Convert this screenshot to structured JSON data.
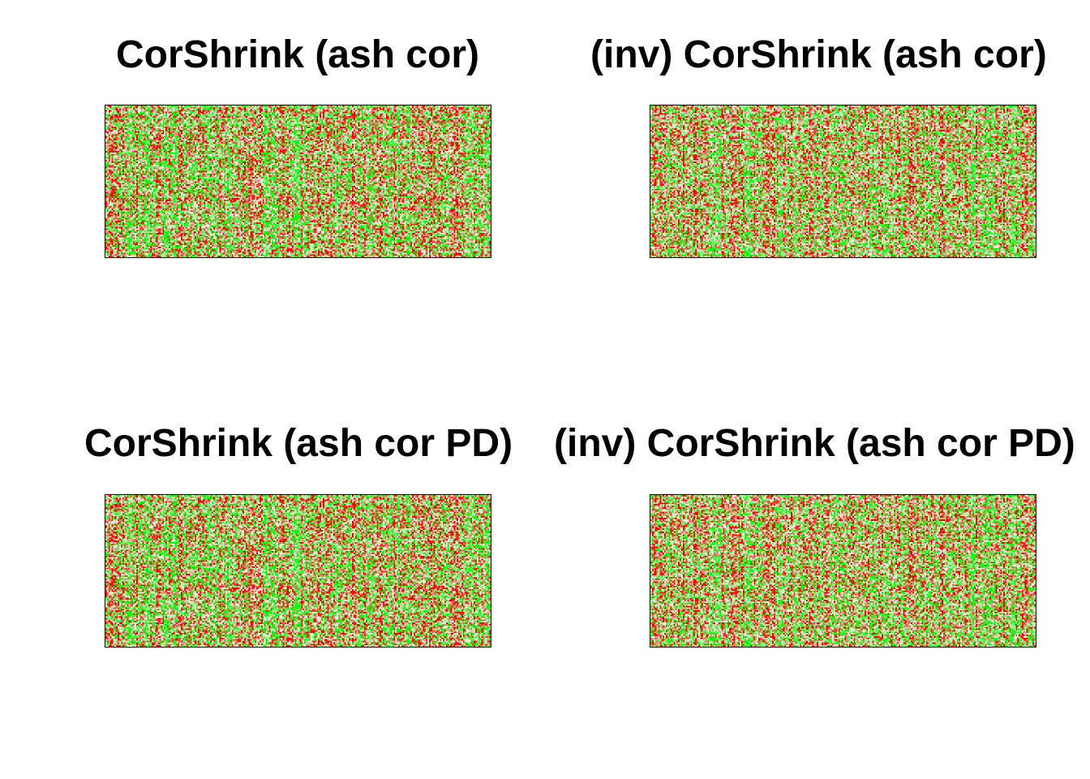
{
  "chart_data": [
    {
      "type": "heatmap",
      "title": "CorShrink (ash cor)",
      "grid": false,
      "rows": 100,
      "cols": 250,
      "value_range": [
        -1,
        1
      ],
      "colors": {
        "low": "#00ff00",
        "mid": "#ffffff",
        "high": "#ff0000"
      }
    },
    {
      "type": "heatmap",
      "title": "(inv) CorShrink (ash cor)",
      "grid": false,
      "rows": 100,
      "cols": 250,
      "value_range": [
        -1,
        1
      ],
      "colors": {
        "low": "#00ff00",
        "mid": "#ffffff",
        "high": "#ff0000"
      }
    },
    {
      "type": "heatmap",
      "title": "CorShrink (ash cor PD)",
      "grid": false,
      "rows": 100,
      "cols": 250,
      "value_range": [
        -1,
        1
      ],
      "colors": {
        "low": "#00ff00",
        "mid": "#ffffff",
        "high": "#ff0000"
      }
    },
    {
      "type": "heatmap",
      "title": "(inv) CorShrink (ash cor PD)",
      "grid": false,
      "rows": 100,
      "cols": 250,
      "value_range": [
        -1,
        1
      ],
      "colors": {
        "low": "#00ff00",
        "mid": "#ffffff",
        "high": "#ff0000"
      }
    }
  ]
}
